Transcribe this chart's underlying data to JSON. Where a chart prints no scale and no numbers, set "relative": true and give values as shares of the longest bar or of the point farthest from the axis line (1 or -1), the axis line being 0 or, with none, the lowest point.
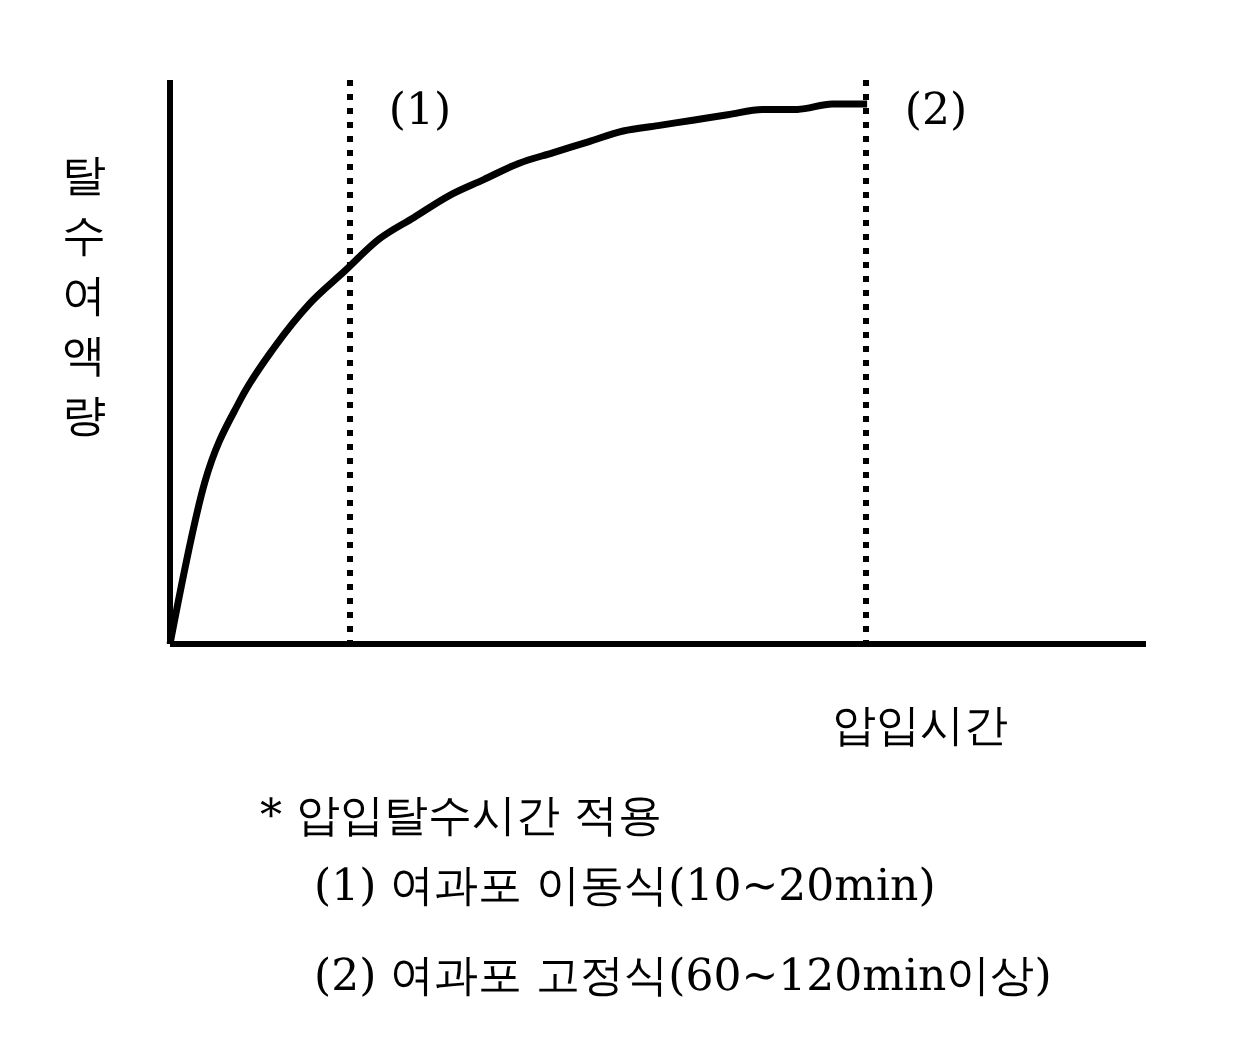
{
  "chart_data": {
    "type": "line",
    "relative": true,
    "ylabel": "탈수여액량",
    "xlabel": "압입시간",
    "categories": [
      null,
      null,
      null,
      null,
      null,
      null,
      null,
      null,
      null,
      null,
      null,
      null,
      null,
      null,
      null,
      null,
      null,
      null,
      null,
      null,
      null,
      null,
      null,
      null,
      null,
      null,
      null,
      null,
      null
    ],
    "series": [
      {
        "color": "#000000",
        "values": [
          0,
          0.3,
          0.45,
          0.55,
          0.63,
          0.69,
          0.75,
          0.79,
          0.83,
          0.86,
          0.89,
          0.91,
          0.93,
          0.95,
          0.96,
          0.97,
          0.98,
          0.99,
          0.99,
          1,
          1,
          null,
          null,
          null,
          null,
          null,
          null,
          null,
          null
        ]
      }
    ],
    "annotations": [
      "(1)",
      "(2)",
      "* 압입탈수시간 적용",
      "(1) 여과포 이동식(10~20min)",
      "(2) 여과포 고정식(60~120min이상)"
    ],
    "marker": "none",
    "line_style": "solid"
  }
}
